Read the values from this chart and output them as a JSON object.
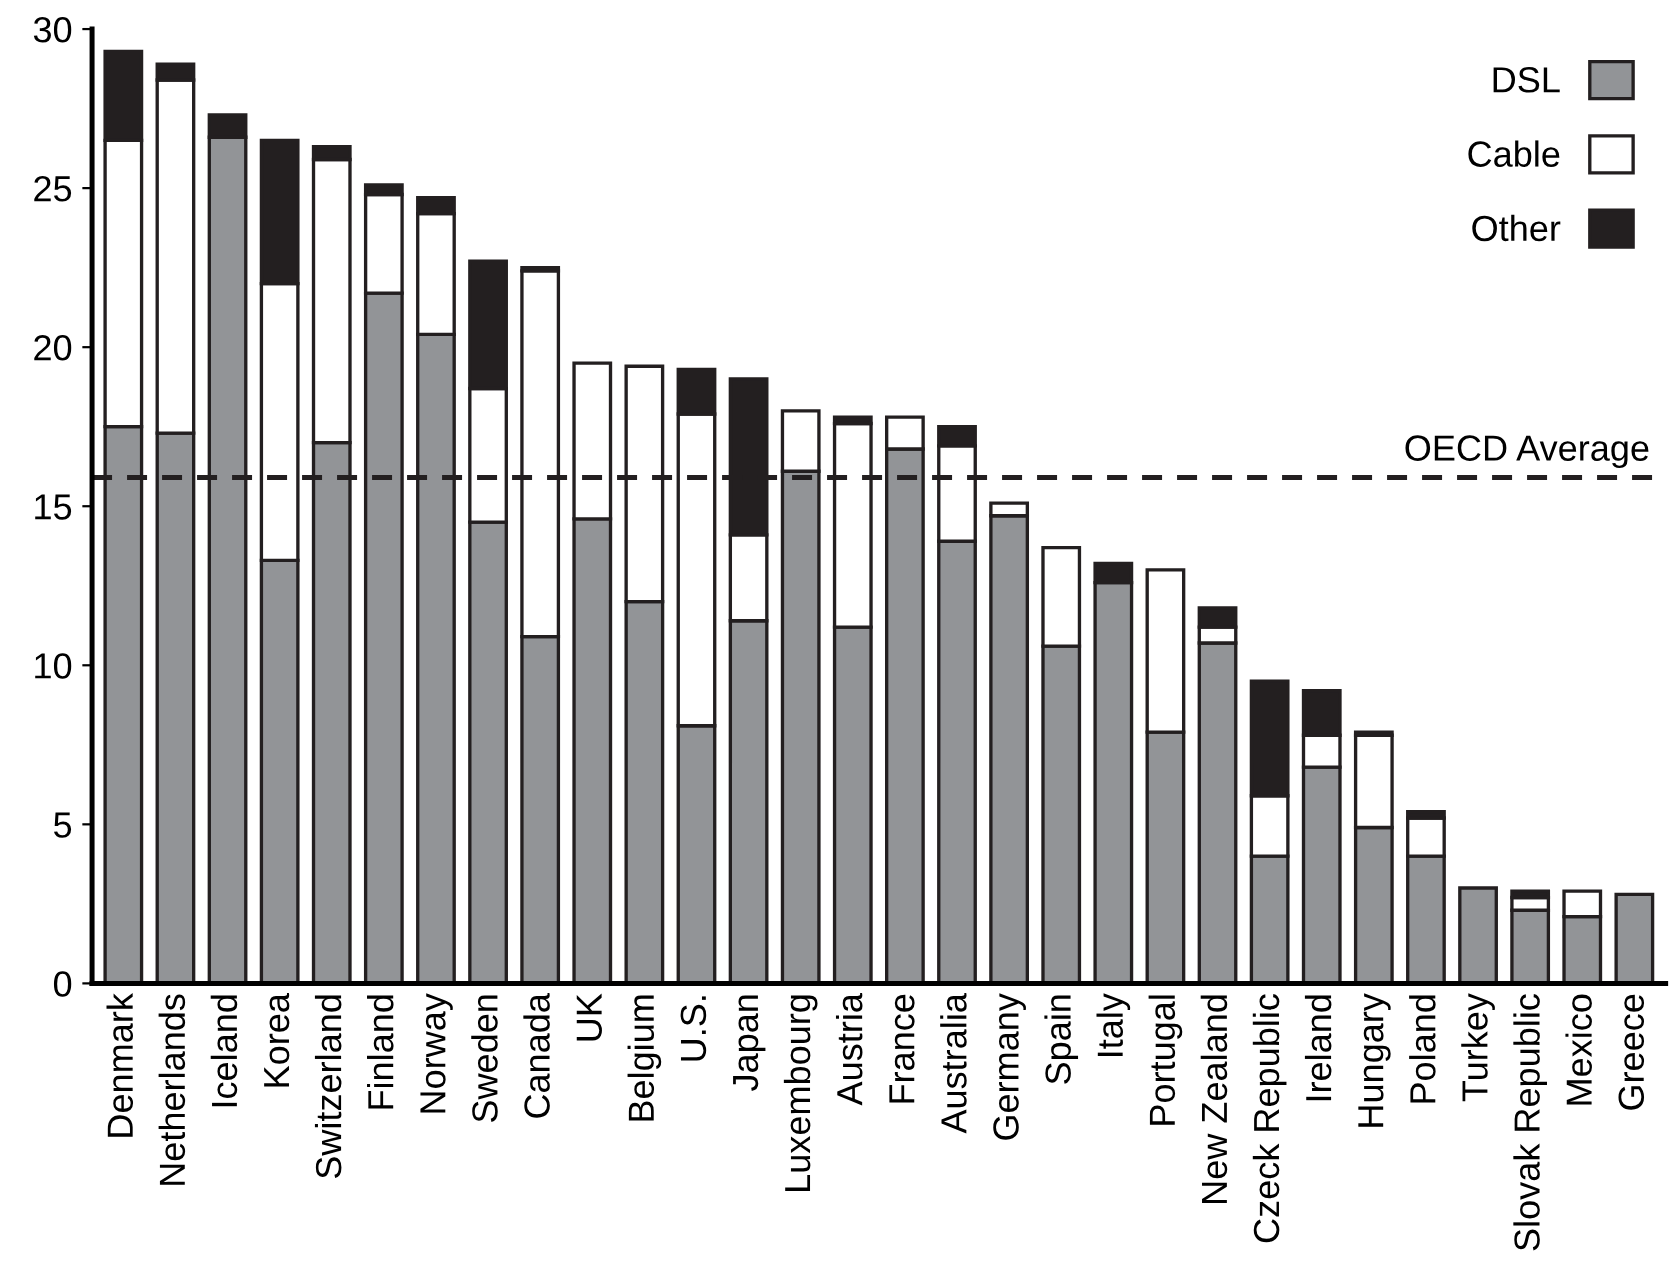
{
  "chart_data": {
    "type": "bar",
    "stacked": true,
    "categories": [
      "Denmark",
      "Netherlands",
      "Iceland",
      "Korea",
      "Switzerland",
      "Finland",
      "Norway",
      "Sweden",
      "Canada",
      "UK",
      "Belgium",
      "U.S.",
      "Japan",
      "Luxembourg",
      "Austria",
      "France",
      "Australia",
      "Germany",
      "Spain",
      "Italy",
      "Portugal",
      "New Zealand",
      "Czeck Republic",
      "Ireland",
      "Hungary",
      "Poland",
      "Turkey",
      "Slovak Republic",
      "Mexico",
      "Greece"
    ],
    "series": [
      {
        "name": "DSL",
        "color": "#929497",
        "values": [
          17.5,
          17.3,
          26.6,
          13.3,
          17.0,
          21.7,
          20.4,
          14.5,
          10.9,
          14.6,
          12.0,
          8.1,
          11.4,
          16.1,
          11.2,
          16.8,
          13.9,
          14.7,
          10.6,
          12.6,
          7.9,
          10.7,
          4.0,
          6.8,
          4.9,
          4.0,
          3.0,
          2.3,
          2.1,
          2.8
        ]
      },
      {
        "name": "Cable",
        "color": "#ffffff",
        "values": [
          9.0,
          11.1,
          0,
          8.7,
          8.9,
          3.1,
          3.8,
          4.2,
          11.5,
          4.9,
          7.4,
          9.8,
          2.7,
          1.9,
          6.4,
          1.0,
          3.0,
          0.4,
          3.1,
          0,
          5.1,
          0.5,
          1.9,
          1.0,
          2.9,
          1.2,
          0,
          0.4,
          0.8,
          0
        ]
      },
      {
        "name": "Other",
        "color": "#231f20",
        "values": [
          2.8,
          0.5,
          0.7,
          4.5,
          0.4,
          0.3,
          0.5,
          4.0,
          0.1,
          0,
          0,
          1.4,
          4.9,
          0,
          0.2,
          0,
          0.6,
          0,
          0,
          0.6,
          0,
          0.6,
          3.6,
          1.4,
          0.1,
          0.2,
          0,
          0.2,
          0,
          0
        ]
      }
    ],
    "ylim": [
      0,
      30
    ],
    "yticks": [
      0,
      5,
      10,
      15,
      20,
      25,
      30
    ],
    "ref_lines": [
      {
        "axis": "y",
        "value": 15.9,
        "label": "OECD Average",
        "color": "#231f20",
        "line_style": "dashed"
      }
    ],
    "legend": "top right",
    "grid": false
  }
}
